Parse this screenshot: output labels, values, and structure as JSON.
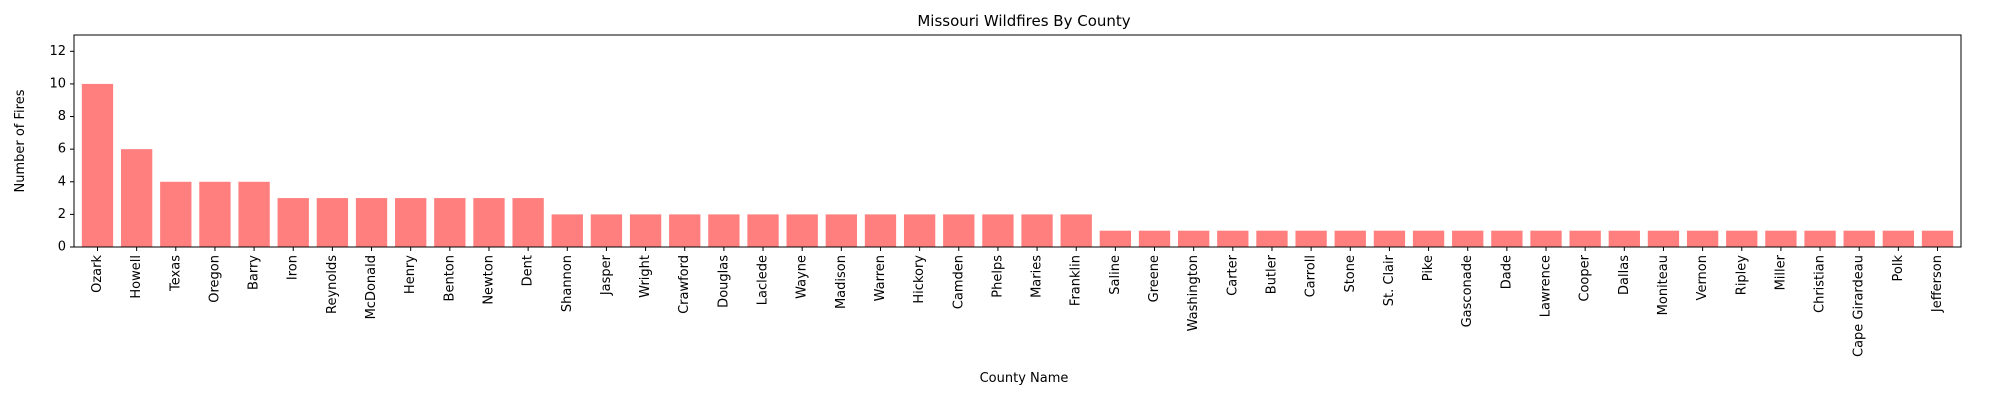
{
  "chart_data": {
    "type": "bar",
    "title": "Missouri Wildfires By County",
    "xlabel": "County Name",
    "ylabel": "Number of Fires",
    "ylim": [
      0,
      13
    ],
    "yticks": [
      0,
      2,
      4,
      6,
      8,
      10,
      12
    ],
    "grid": false,
    "bar_color": "#ff7f7f",
    "categories": [
      "Ozark",
      "Howell",
      "Texas",
      "Oregon",
      "Barry",
      "Iron",
      "Reynolds",
      "McDonald",
      "Henry",
      "Benton",
      "Newton",
      "Dent",
      "Shannon",
      "Jasper",
      "Wright",
      "Crawford",
      "Douglas",
      "Laclede",
      "Wayne",
      "Madison",
      "Warren",
      "Hickory",
      "Camden",
      "Phelps",
      "Maries",
      "Franklin",
      "Saline",
      "Greene",
      "Washington",
      "Carter",
      "Butler",
      "Carroll",
      "Stone",
      "St. Clair",
      "Pike",
      "Gasconade",
      "Dade",
      "Lawrence",
      "Cooper",
      "Dallas",
      "Moniteau",
      "Vernon",
      "Ripley",
      "Miller",
      "Christian",
      "Cape Girardeau",
      "Polk",
      "Jefferson"
    ],
    "values": [
      10,
      6,
      4,
      4,
      4,
      3,
      3,
      3,
      3,
      3,
      3,
      3,
      2,
      2,
      2,
      2,
      2,
      2,
      2,
      2,
      2,
      2,
      2,
      2,
      2,
      2,
      1,
      1,
      1,
      1,
      1,
      1,
      1,
      1,
      1,
      1,
      1,
      1,
      1,
      1,
      1,
      1,
      1,
      1,
      1,
      1,
      1,
      1
    ]
  }
}
